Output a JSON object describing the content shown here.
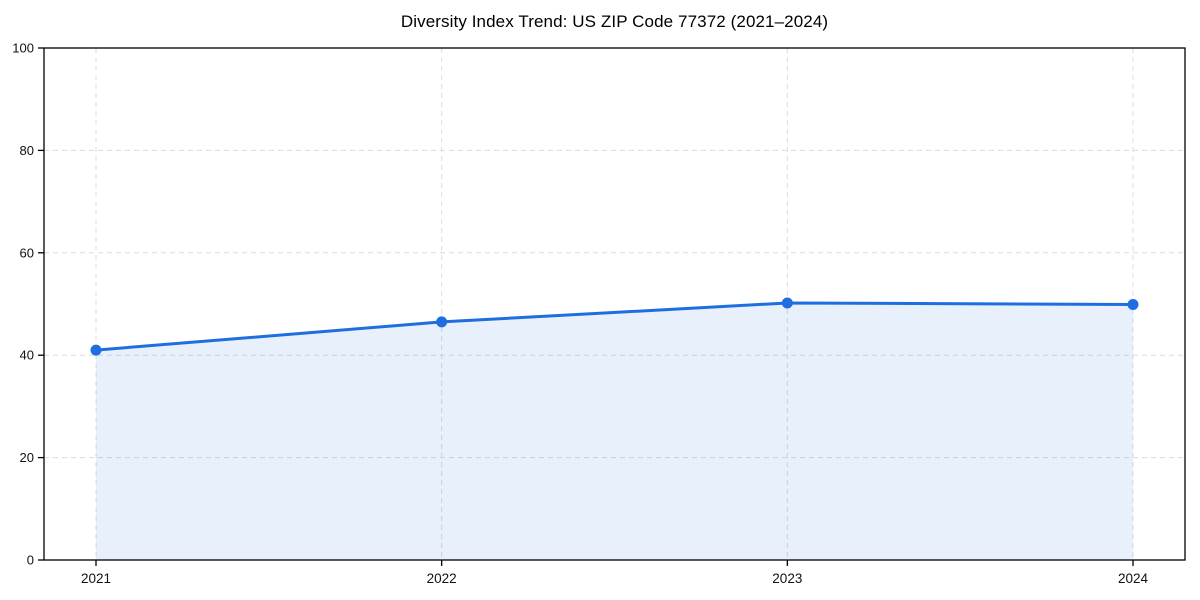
{
  "chart_data": {
    "type": "area",
    "title": "Diversity Index Trend: US ZIP Code 77372 (2021–2024)",
    "x": [
      2021,
      2022,
      2023,
      2024
    ],
    "xtick_labels": [
      "2021",
      "2022",
      "2023",
      "2024"
    ],
    "series": [
      {
        "name": "Diversity Index",
        "values": [
          41.0,
          46.5,
          50.2,
          49.9
        ]
      }
    ],
    "xlabel": "",
    "ylabel": "",
    "ylim": [
      0,
      100
    ],
    "yticks": [
      0,
      20,
      40,
      60,
      80,
      100
    ],
    "grid": true,
    "grid_style": "dashed",
    "legend": "none",
    "colors": {
      "line": "#1f6ee0",
      "marker": "#1f6ee0",
      "fill": "rgba(31, 110, 224, 0.10)",
      "gridline": "#dcdcdc",
      "axis": "#000000",
      "tick_label": "#111111"
    }
  }
}
